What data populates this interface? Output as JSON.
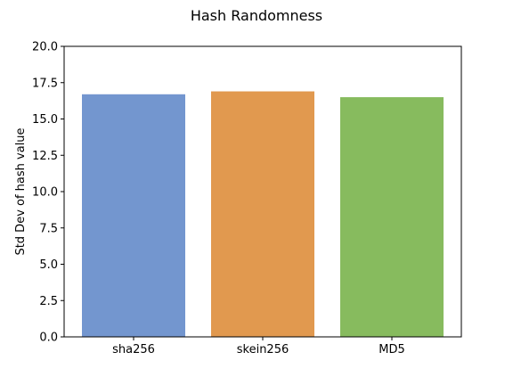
{
  "chart_data": {
    "type": "bar",
    "title": "Hash Randomness",
    "xlabel": "",
    "ylabel": "Std Dev of hash value",
    "categories": [
      "sha256",
      "skein256",
      "MD5"
    ],
    "values": [
      16.7,
      16.9,
      16.5
    ],
    "ylim": [
      0,
      20
    ],
    "yticks": [
      "0.0",
      "2.5",
      "5.0",
      "7.5",
      "10.0",
      "12.5",
      "15.0",
      "17.5",
      "20.0"
    ],
    "colors": [
      "#7396cf",
      "#e1994f",
      "#87bb5e"
    ],
    "grid": false,
    "legend": "none"
  }
}
